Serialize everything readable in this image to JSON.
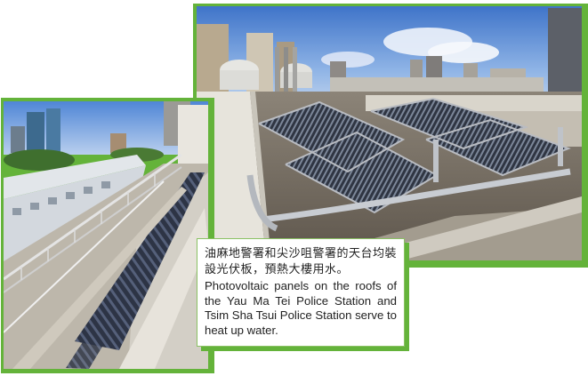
{
  "caption": {
    "chinese": "油麻地警署和尖沙咀警署的天台均裝設光伏板，預熱大樓用水。",
    "english": "Photovoltaic panels on the roofs of the Yau Ma Tei Police Station and Tsim Sha Tsui Police Station serve to heat up water."
  },
  "colors": {
    "frame_accent": "#64b33a",
    "sky": "#5f8fd4",
    "panel": "#3a4150"
  },
  "images": {
    "right_photo": "rooftop-solar-water-heating-tubes-photo",
    "left_photo": "rooftop-solar-panel-rows-photo"
  }
}
